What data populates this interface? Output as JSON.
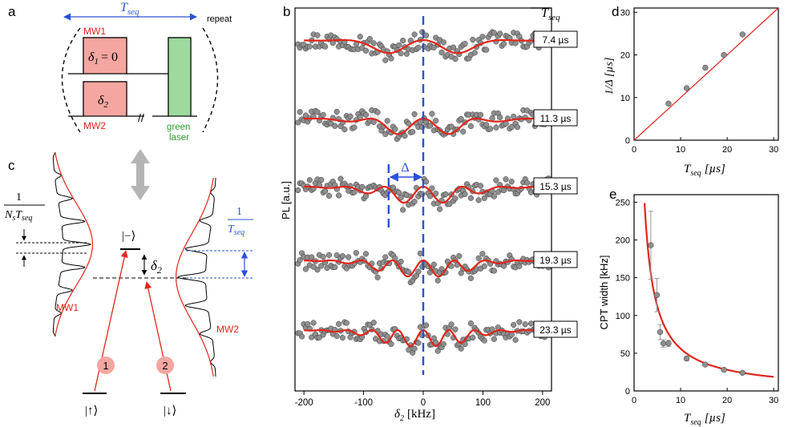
{
  "panel_labels": {
    "a": "a",
    "b": "b",
    "c": "c",
    "d": "d",
    "e": "e"
  },
  "panel_a": {
    "tseq_label": "T",
    "tseq_sub": "seq",
    "repeat_label": "repeat",
    "mw1_label": "MW1",
    "mw2_label": "MW2",
    "delta1_text": "δ",
    "delta1_sub": "1",
    "delta1_eq": "= 0",
    "delta2_text": "δ",
    "delta2_sub": "2",
    "break_mark": "//",
    "laser_label_1": "green",
    "laser_label_2": "laser",
    "colors": {
      "mw": "#f4a6a0",
      "laser": "#9ed99e",
      "tseq": "#2a52d6",
      "red": "#e0261b",
      "green": "#2f9e2f"
    }
  },
  "panel_c": {
    "frac_one": "1",
    "frac_den_main": "N",
    "frac_den_s": "s",
    "frac_den_T": "T",
    "frac_den_seq": "seq",
    "frac_one_blue": "1",
    "frac_blue_T": "T",
    "frac_blue_seq": "seq",
    "minus_state": "|−⟩",
    "up_state": "|↑⟩",
    "down_state": "|↓⟩",
    "delta2_text": "δ",
    "delta2_sub": "2",
    "mw1_label": "MW1",
    "mw2_label": "MW2",
    "arrow1_label": "1",
    "arrow2_label": "2"
  },
  "chart_data": [
    {
      "panel": "b",
      "type": "line",
      "title": "",
      "xlabel": "δ2 [kHz]",
      "xlabel_main": "δ",
      "xlabel_sub": "2",
      "xlabel_unit": "[kHz]",
      "ylabel": "PL [a.u.]",
      "xlim": [
        -215,
        215
      ],
      "xticks": [
        "-200",
        "-100",
        "0",
        "100",
        "200"
      ],
      "xtick_values": [
        -200,
        -100,
        0,
        100,
        200
      ],
      "column_title": "T",
      "column_title_sub": "seq",
      "delta_label": "Δ",
      "delta_range_khz": [
        -58,
        0
      ],
      "series": [
        {
          "name": "7.4 µs",
          "tseq_us": 7.4
        },
        {
          "name": "11.3 µs",
          "tseq_us": 11.3
        },
        {
          "name": "15.3 µs",
          "tseq_us": 15.3
        },
        {
          "name": "19.3 µs",
          "tseq_us": 19.3
        },
        {
          "name": "23.3 µs",
          "tseq_us": 23.3
        }
      ]
    },
    {
      "panel": "d",
      "type": "scatter",
      "xlabel": "Tseq [µs]",
      "xlabel_main": "T",
      "xlabel_sub": "seq",
      "xlabel_unit": "[µs]",
      "ylabel": "1/Δ [µs]",
      "ylabel_text": "1/Δ  [µs]",
      "xlim": [
        0,
        31
      ],
      "ylim": [
        0,
        31
      ],
      "xticks": [
        "0",
        "10",
        "20",
        "30"
      ],
      "yticks": [
        "0",
        "10",
        "20",
        "30"
      ],
      "points": [
        [
          7.4,
          8.6
        ],
        [
          11.3,
          12.2
        ],
        [
          15.3,
          17.0
        ],
        [
          19.3,
          20.0
        ],
        [
          23.3,
          24.8
        ]
      ],
      "fit_line": [
        [
          0,
          0
        ],
        [
          31,
          31
        ]
      ]
    },
    {
      "panel": "e",
      "type": "scatter",
      "xlabel": "Tseq [µs]",
      "xlabel_main": "T",
      "xlabel_sub": "seq",
      "xlabel_unit": "[µs]",
      "ylabel": "CPT width [kHz]",
      "xlim": [
        0,
        31
      ],
      "ylim": [
        0,
        260
      ],
      "xticks": [
        "0",
        "10",
        "20",
        "30"
      ],
      "yticks": [
        "0",
        "50",
        "100",
        "150",
        "200",
        "250"
      ],
      "points": [
        {
          "x": 3.6,
          "y": 193,
          "err": 45
        },
        {
          "x": 4.9,
          "y": 127,
          "err": 22
        },
        {
          "x": 5.6,
          "y": 78,
          "err": 10
        },
        {
          "x": 6.3,
          "y": 63,
          "err": 5
        },
        {
          "x": 7.4,
          "y": 63,
          "err": 4
        },
        {
          "x": 11.3,
          "y": 43,
          "err": 3
        },
        {
          "x": 15.3,
          "y": 35,
          "err": 2
        },
        {
          "x": 19.3,
          "y": 28,
          "err": 2
        },
        {
          "x": 23.3,
          "y": 24,
          "err": 1
        }
      ],
      "fit": {
        "form": "A / T",
        "A": 560
      }
    }
  ]
}
